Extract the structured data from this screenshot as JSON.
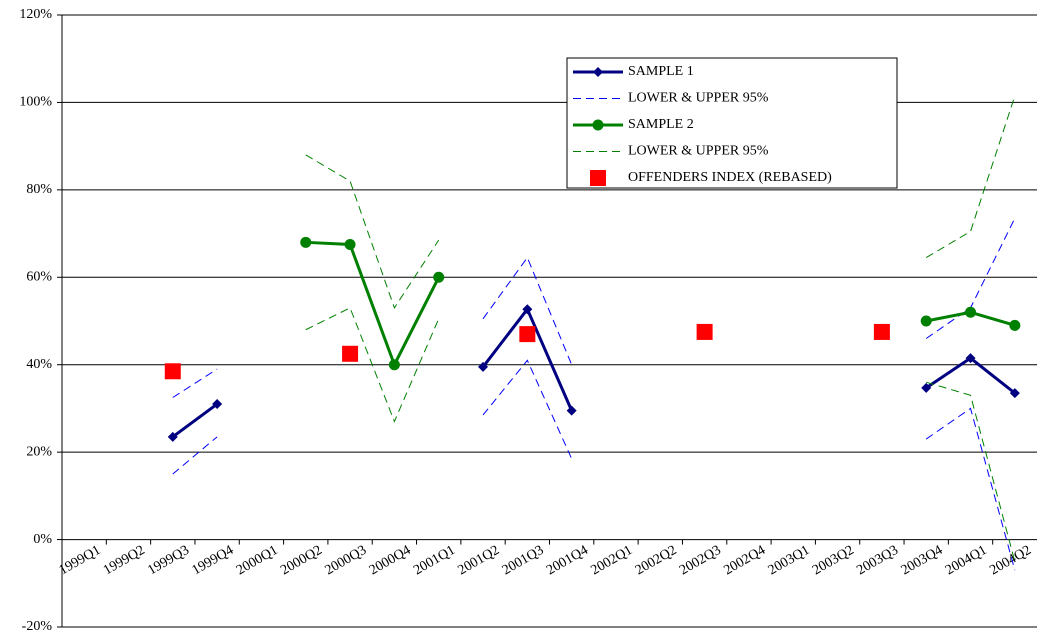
{
  "chart_data": {
    "type": "line",
    "categories": [
      "1999Q1",
      "1999Q2",
      "1999Q3",
      "1999Q4",
      "2000Q1",
      "2000Q2",
      "2000Q3",
      "2000Q4",
      "2001Q1",
      "2001Q2",
      "2001Q3",
      "2001Q4",
      "2002Q1",
      "2002Q2",
      "2002Q3",
      "2002Q4",
      "2003Q1",
      "2003Q2",
      "2003Q3",
      "2003Q4",
      "2004Q1",
      "2004Q2"
    ],
    "ylim": [
      -20,
      120
    ],
    "yticks": [
      {
        "value": -20,
        "label": "-20%"
      },
      {
        "value": 0,
        "label": "0%"
      },
      {
        "value": 20,
        "label": "20%"
      },
      {
        "value": 40,
        "label": "40%"
      },
      {
        "value": 60,
        "label": "60%"
      },
      {
        "value": 80,
        "label": "80%"
      },
      {
        "value": 100,
        "label": "100%"
      },
      {
        "value": 120,
        "label": "120%"
      }
    ],
    "grid": true,
    "series": [
      {
        "name": "SAMPLE 1",
        "color": "#000080",
        "marker": "diamond",
        "values": [
          null,
          null,
          23.5,
          31,
          null,
          null,
          null,
          null,
          null,
          39.5,
          52.7,
          29.5,
          null,
          null,
          null,
          null,
          null,
          null,
          null,
          34.7,
          41.5,
          33.5
        ]
      },
      {
        "name": "LOWER & UPPER 95%",
        "color": "#0000ff",
        "dashed": true,
        "lower": [
          null,
          null,
          15,
          23.5,
          null,
          null,
          null,
          null,
          null,
          28.5,
          41,
          18.5,
          null,
          null,
          null,
          null,
          null,
          null,
          null,
          23,
          30,
          -7
        ],
        "upper": [
          null,
          null,
          32.5,
          39,
          null,
          null,
          null,
          null,
          null,
          50.5,
          64.5,
          40,
          null,
          null,
          null,
          null,
          null,
          null,
          null,
          46,
          53,
          73.5
        ]
      },
      {
        "name": "SAMPLE 2",
        "color": "#008000",
        "marker": "circle",
        "values": [
          null,
          null,
          null,
          null,
          null,
          68,
          67.5,
          40,
          60,
          null,
          null,
          null,
          null,
          null,
          null,
          null,
          null,
          null,
          null,
          50,
          52,
          49
        ]
      },
      {
        "name": "LOWER & UPPER 95%",
        "color": "#008000",
        "dashed": true,
        "lower": [
          null,
          null,
          null,
          null,
          null,
          48,
          53,
          27,
          50.5,
          null,
          null,
          null,
          null,
          null,
          null,
          null,
          null,
          null,
          null,
          36,
          33,
          -5
        ],
        "upper": [
          null,
          null,
          null,
          null,
          null,
          88,
          82,
          53,
          68.5,
          null,
          null,
          null,
          null,
          null,
          null,
          null,
          null,
          null,
          null,
          64.5,
          70.5,
          101.5
        ]
      },
      {
        "name": "OFFENDERS INDEX (REBASED)",
        "color": "#ff0000",
        "marker": "square",
        "line": false,
        "values": [
          null,
          null,
          38.5,
          null,
          null,
          null,
          42.5,
          null,
          null,
          null,
          47,
          null,
          null,
          null,
          47.5,
          null,
          null,
          null,
          47.5,
          null,
          null,
          null
        ]
      }
    ]
  }
}
